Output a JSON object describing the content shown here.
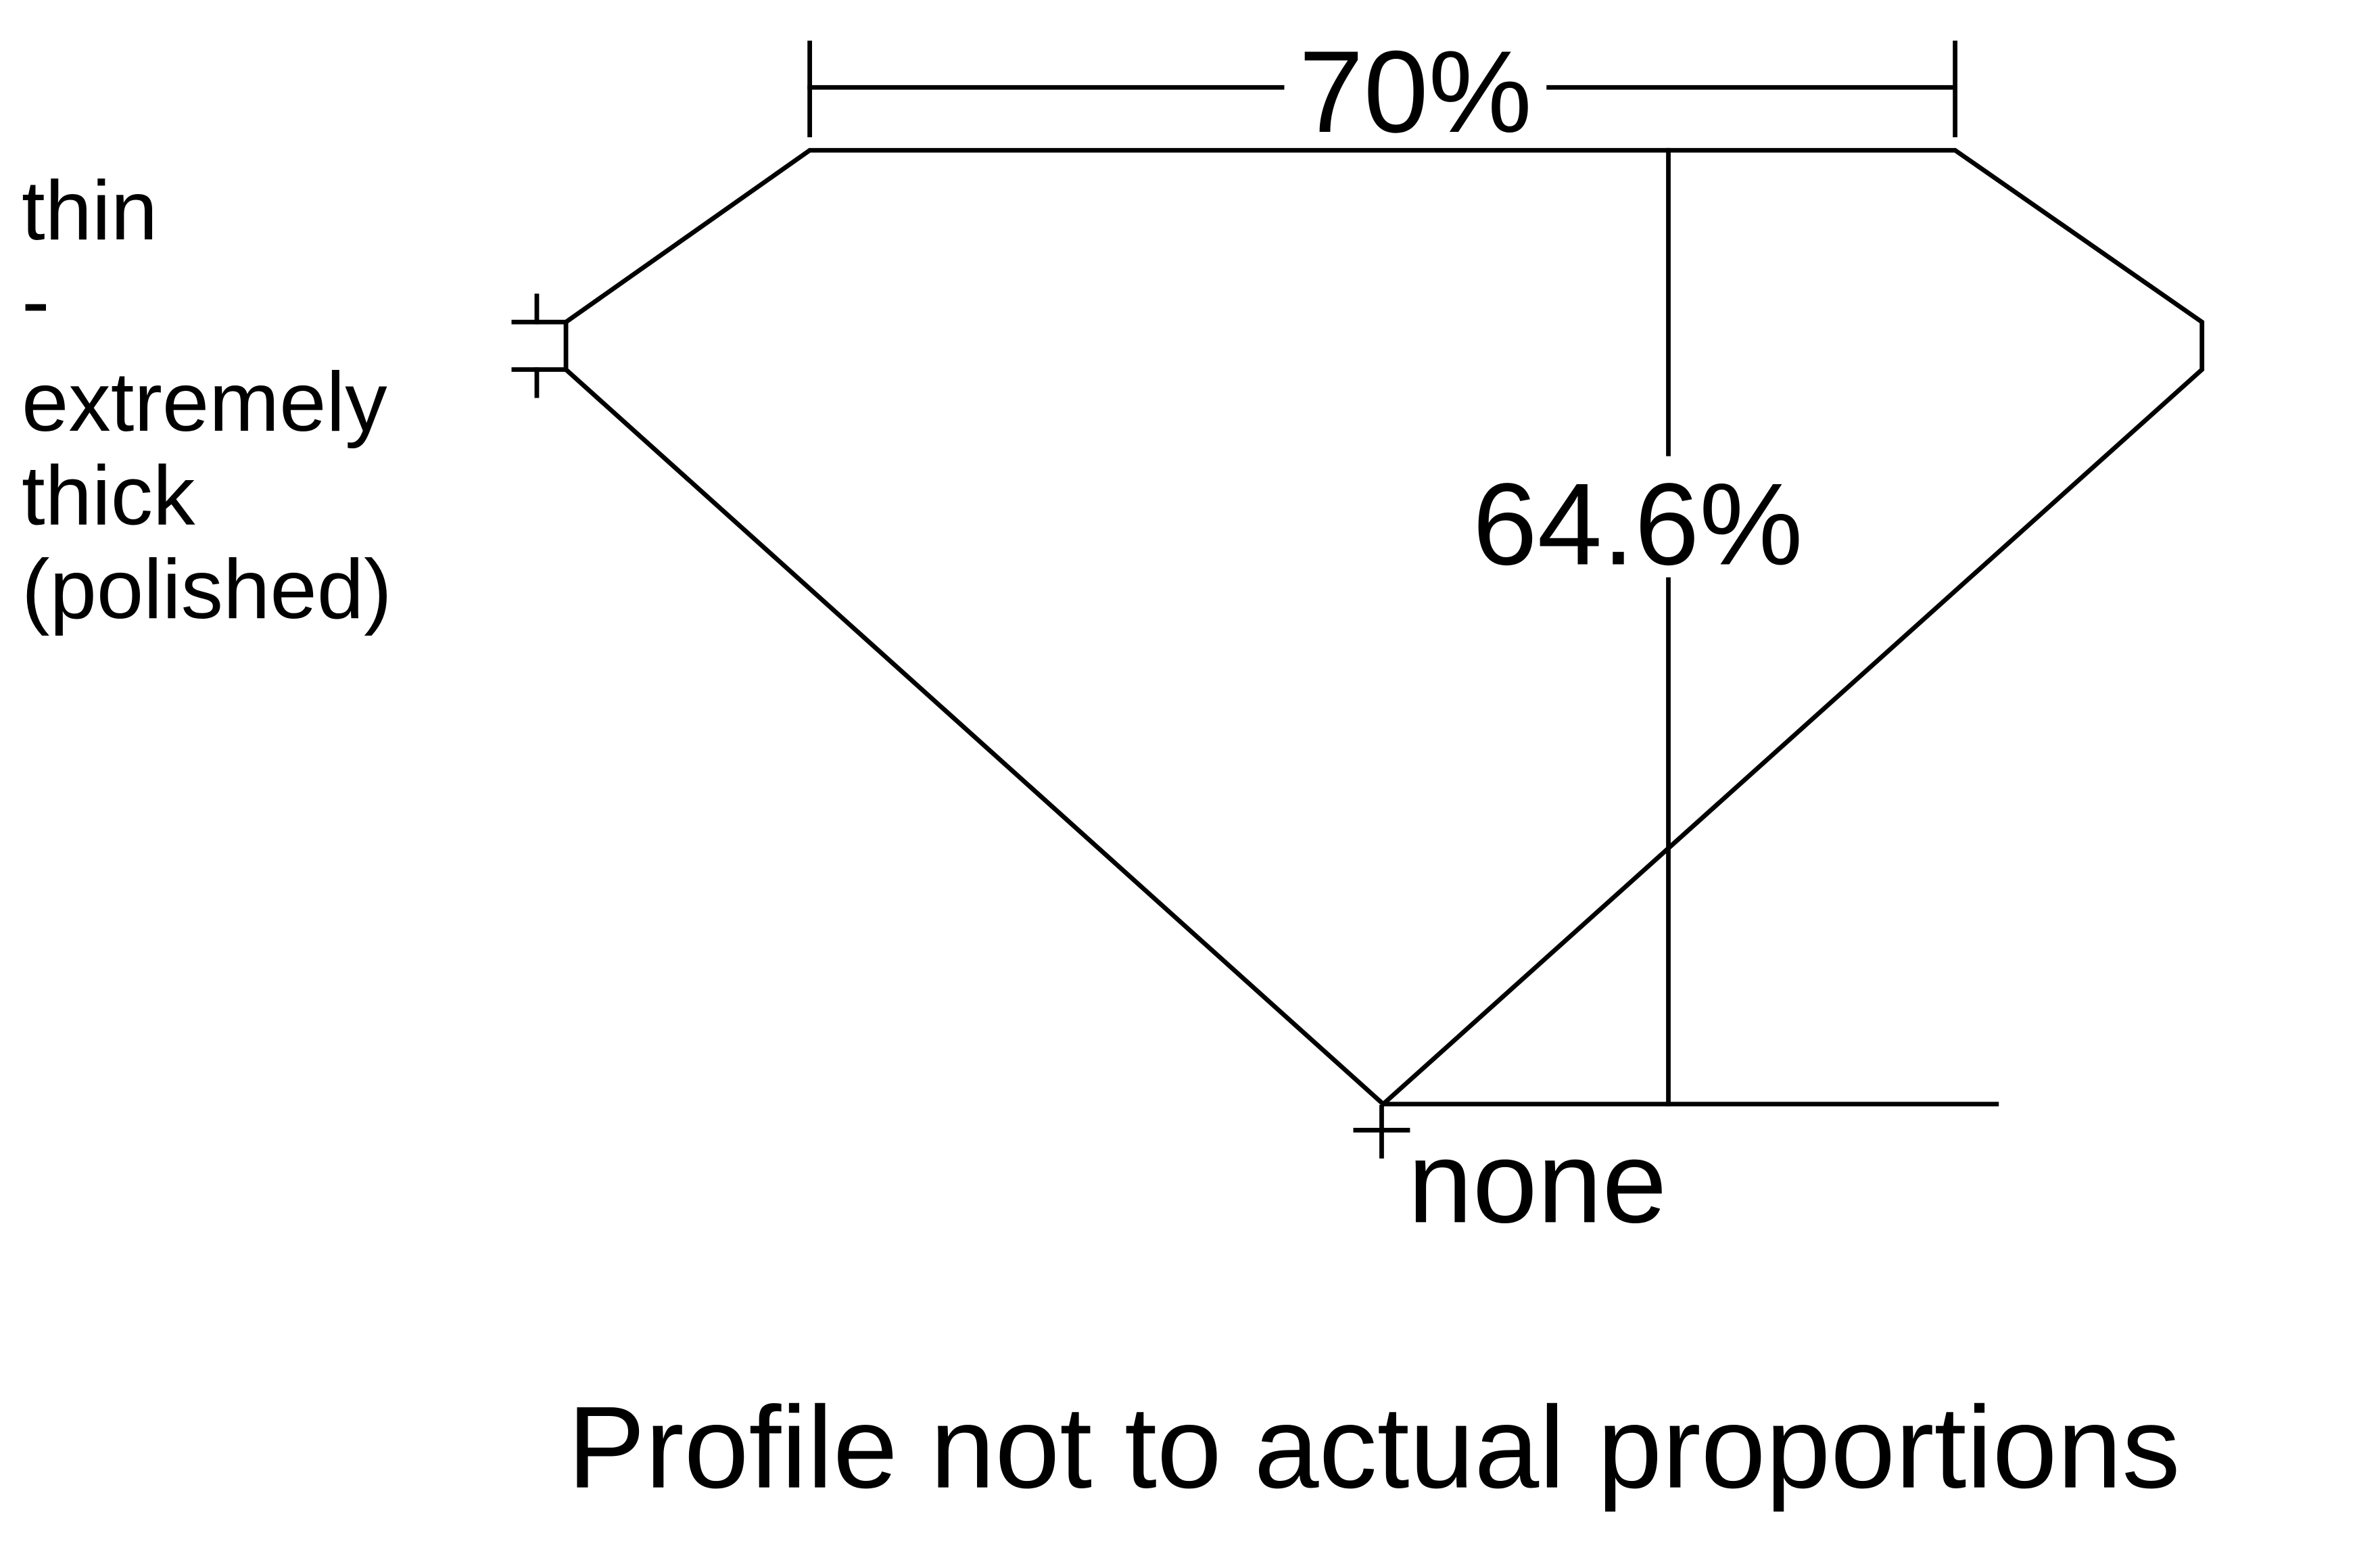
{
  "diagram": {
    "table_width_label": "70%",
    "total_depth_label": "64.6%",
    "girdle_label_lines": [
      "thin",
      "-",
      "extremely",
      "thick",
      "(polished)"
    ],
    "culet_label": "none",
    "caption": "Profile not to actual proportions",
    "line_color": "#000000",
    "background_color": "#ffffff"
  }
}
